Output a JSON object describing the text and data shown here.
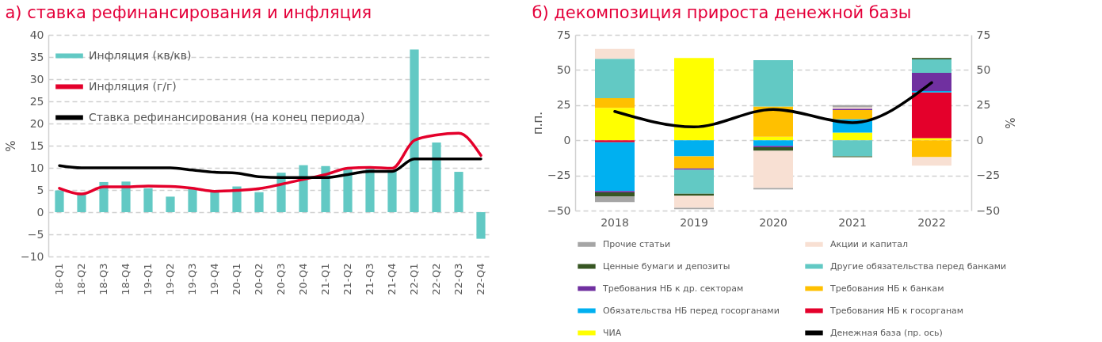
{
  "chart_data": [
    {
      "type": "bar",
      "title": "а) ставка рефинансирования и инфляция",
      "ylabel": "%",
      "categories": [
        "18-Q1",
        "18-Q2",
        "18-Q3",
        "18-Q4",
        "19-Q1",
        "19-Q2",
        "19-Q3",
        "19-Q4",
        "20-Q1",
        "20-Q2",
        "20-Q3",
        "20-Q4",
        "21-Q1",
        "21-Q2",
        "21-Q3",
        "21-Q4",
        "22-Q1",
        "22-Q2",
        "22-Q3",
        "22-Q4"
      ],
      "series": [
        {
          "name": "Инфляция (кв/кв)",
          "color": "#62c9c4",
          "values": [
            4.9,
            4.0,
            6.8,
            6.9,
            5.4,
            3.5,
            5.2,
            4.8,
            5.8,
            4.5,
            8.9,
            10.6,
            10.4,
            9.6,
            9.8,
            9.5,
            36.7,
            15.7,
            9.1,
            -6.0
          ]
        },
        {
          "name": "Инфляция (г/г)",
          "type": "line",
          "color": "#e4002b",
          "values": [
            5.4,
            4.1,
            5.7,
            5.7,
            5.9,
            5.8,
            5.4,
            4.7,
            4.9,
            5.3,
            6.3,
            7.4,
            8.5,
            9.9,
            10.1,
            9.9,
            16.2,
            17.4,
            17.8,
            12.8
          ]
        },
        {
          "name": "Ставка рефинансирования (на конец периода)",
          "type": "line",
          "color": "#000000",
          "values": [
            10.5,
            10,
            10,
            10,
            10,
            10,
            9.5,
            9,
            8.8,
            8,
            7.8,
            7.8,
            7.8,
            8.5,
            9.2,
            9.2,
            12,
            12,
            12,
            12
          ]
        }
      ],
      "ylim": [
        -10,
        40
      ],
      "yticks": [
        -10,
        -5,
        0,
        5,
        10,
        15,
        20,
        25,
        30,
        35,
        40
      ],
      "grid": "y",
      "legend": "top left"
    },
    {
      "type": "bar",
      "title": "б) декомпозиция прироста денежной базы",
      "ylabel": "п.п.",
      "y2label": "%",
      "stacked": true,
      "categories": [
        "2018",
        "2019",
        "2020",
        "2021",
        "2022"
      ],
      "series": [
        {
          "name": "ЧИА",
          "color": "#ffff00",
          "values": [
            23,
            58.5,
            2.5,
            5.5,
            1.5
          ]
        },
        {
          "name": "Требования НБ к госорганам",
          "color": "#e4002b",
          "values": [
            -1.5,
            0,
            0,
            0,
            32.5
          ]
        },
        {
          "name": "Обязательства НБ перед госорганами",
          "color": "#00b0f0",
          "values": [
            -34.5,
            -11.5,
            -4,
            9.5,
            1
          ]
        },
        {
          "name": "Требования НБ к банкам",
          "color": "#ffc000",
          "values": [
            7,
            -8.5,
            21.5,
            6.5,
            -12
          ]
        },
        {
          "name": "Требования НБ к др. секторам",
          "color": "#7030a0",
          "values": [
            -1,
            -1,
            -1,
            1,
            13
          ]
        },
        {
          "name": "Другие обязательства перед банками",
          "color": "#62c9c4",
          "values": [
            28,
            -17,
            33,
            -11.5,
            9.5
          ]
        },
        {
          "name": "Ценные бумаги и депозиты",
          "color": "#375623",
          "values": [
            -3,
            -1.5,
            -2.5,
            -0.5,
            1
          ]
        },
        {
          "name": "Акции и капитал",
          "color": "#f8e0d3",
          "values": [
            7,
            -8.5,
            -26.5,
            1,
            -6
          ]
        },
        {
          "name": "Прочие статьи",
          "color": "#a5a5a5",
          "values": [
            -4,
            -1,
            -1,
            1.5,
            0
          ]
        },
        {
          "name": "Денежная база (пр. ось)",
          "type": "line",
          "axis": "y2",
          "color": "#000000",
          "values": [
            20.5,
            9.5,
            22,
            12.5,
            41
          ]
        }
      ],
      "ylim": [
        -50,
        75
      ],
      "yticks": [
        -50,
        -25,
        0,
        25,
        50,
        75
      ],
      "y2lim": [
        -50,
        75
      ],
      "y2ticks": [
        -50,
        -25,
        0,
        25,
        50,
        75
      ],
      "grid": "y",
      "legend": "bottom"
    }
  ]
}
